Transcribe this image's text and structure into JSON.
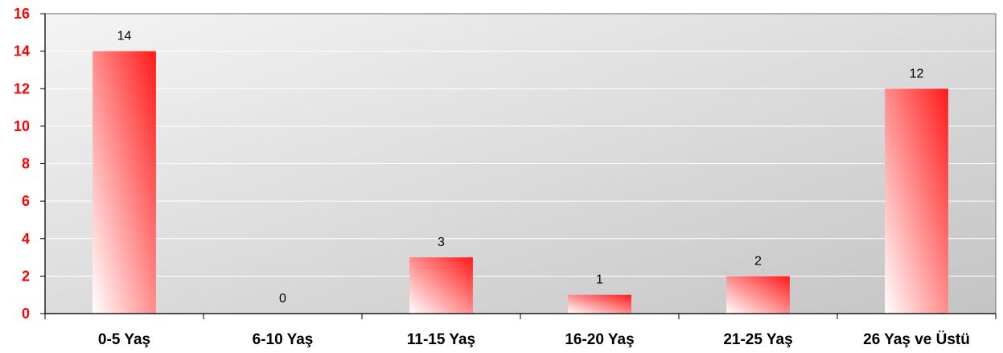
{
  "chart_data": {
    "type": "bar",
    "categories": [
      "0-5 Yaş",
      "6-10 Yaş",
      "11-15 Yaş",
      "16-20 Yaş",
      "21-25 Yaş",
      "26 Yaş ve Üstü"
    ],
    "values": [
      14,
      0,
      3,
      1,
      2,
      12
    ],
    "data_labels": [
      "14",
      "0",
      "3",
      "1",
      "2",
      "12"
    ],
    "yticks": [
      "0",
      "2",
      "4",
      "6",
      "8",
      "10",
      "12",
      "14",
      "16"
    ],
    "ylim": [
      0,
      16
    ],
    "title": "",
    "xlabel": "",
    "ylabel": "",
    "grid": true,
    "legend": "none",
    "colors": {
      "bar_start": "#ffffff",
      "bar_end": "#ff1a1a",
      "ytick_color": "#ff0000",
      "plot_bg_light": "#f4f4f4",
      "plot_bg_dark": "#c4c4c4",
      "gridline": "#ffffff",
      "axis": "#808080"
    }
  }
}
